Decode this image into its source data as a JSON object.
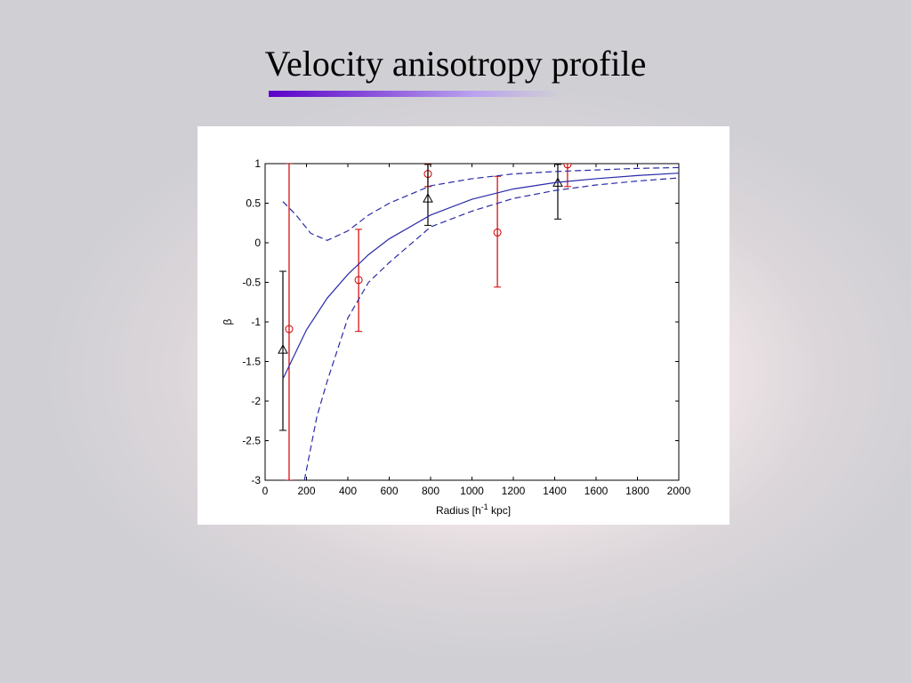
{
  "title": "Velocity anisotropy profile",
  "chart_data": {
    "type": "errorbar-line",
    "x_label": [
      "Radius [h",
      "-1",
      " kpc]"
    ],
    "y_label": "β",
    "xlim": [
      0,
      2000
    ],
    "xticks": [
      0,
      200,
      400,
      600,
      800,
      1000,
      1200,
      1400,
      1600,
      1800,
      2000
    ],
    "ylim": [
      -3,
      1
    ],
    "yticks": [
      -3,
      -2.5,
      -2,
      -1.5,
      -1,
      -0.5,
      0,
      0.5,
      1
    ],
    "series": [
      {
        "kind": "points",
        "marker": "circle",
        "color": "#d00000",
        "x": [
          116,
          452,
          787,
          1123,
          1462
        ],
        "values": [
          -1.09,
          -0.47,
          0.87,
          0.13,
          0.99
        ],
        "lower": [
          -3,
          -1.12,
          0.71,
          -0.56,
          0.71
        ],
        "upper": [
          1.0,
          0.17,
          1.0,
          0.84,
          1.0
        ]
      },
      {
        "kind": "points",
        "marker": "triangle",
        "color": "#000000",
        "x": [
          86,
          787,
          1415
        ],
        "values": [
          -1.35,
          0.56,
          0.76
        ],
        "lower": [
          -2.37,
          0.22,
          0.3
        ],
        "upper": [
          -0.36,
          0.99,
          0.99
        ]
      },
      {
        "kind": "line",
        "style": "solid",
        "color": "#2a2aa8",
        "x": [
          86,
          200,
          300,
          400,
          500,
          600,
          800,
          1000,
          1200,
          1400,
          1600,
          1800,
          2000
        ],
        "values": [
          -1.72,
          -1.1,
          -0.7,
          -0.4,
          -0.15,
          0.05,
          0.35,
          0.55,
          0.68,
          0.76,
          0.81,
          0.85,
          0.88
        ]
      },
      {
        "kind": "line",
        "style": "dashed",
        "color": "#2a2aa8",
        "x": [
          86,
          150,
          220,
          300,
          400,
          500,
          600,
          800,
          1000,
          1200,
          1400,
          1600,
          1800,
          2000
        ],
        "values": [
          0.52,
          0.35,
          0.12,
          0.03,
          0.15,
          0.35,
          0.5,
          0.72,
          0.81,
          0.87,
          0.9,
          0.92,
          0.94,
          0.95
        ]
      },
      {
        "kind": "line",
        "style": "dashed",
        "color": "#2a2aa8",
        "x": [
          190,
          250,
          300,
          400,
          500,
          600,
          800,
          1000,
          1200,
          1400,
          1600,
          1800,
          2000
        ],
        "values": [
          -3,
          -2.2,
          -1.75,
          -0.95,
          -0.5,
          -0.25,
          0.2,
          0.4,
          0.56,
          0.66,
          0.73,
          0.78,
          0.82
        ]
      }
    ]
  }
}
